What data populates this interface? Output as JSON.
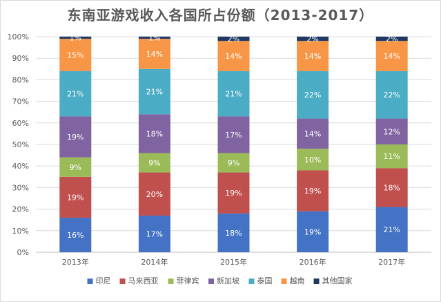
{
  "chart_data": {
    "type": "bar",
    "stacked": true,
    "title": "东南亚游戏收入各国所占份额（2013-2017）",
    "categories": [
      "2013年",
      "2014年",
      "2015年",
      "2016年",
      "2017年"
    ],
    "y_ticks": [
      "0%",
      "10%",
      "20%",
      "30%",
      "40%",
      "50%",
      "60%",
      "70%",
      "80%",
      "90%",
      "100%"
    ],
    "ylim": [
      0,
      100
    ],
    "grid": true,
    "legend_position": "bottom",
    "series": [
      {
        "name": "印尼",
        "color": "#4472C4",
        "label_color": "#ffffff",
        "values": [
          16,
          17,
          18,
          19,
          21
        ],
        "labels": [
          "16%",
          "17%",
          "18%",
          "19%",
          "21%"
        ]
      },
      {
        "name": "马来西亚",
        "color": "#C0504D",
        "label_color": "#ffffff",
        "values": [
          19,
          20,
          19,
          19,
          18
        ],
        "labels": [
          "19%",
          "20%",
          "19%",
          "19%",
          "18%"
        ]
      },
      {
        "name": "菲律宾",
        "color": "#9BBB59",
        "label_color": "#ffffff",
        "values": [
          9,
          9,
          9,
          10,
          11
        ],
        "labels": [
          "9%",
          "9%",
          "9%",
          "10%",
          "11%"
        ]
      },
      {
        "name": "新加坡",
        "color": "#8064A2",
        "label_color": "#ffffff",
        "values": [
          19,
          18,
          17,
          14,
          12
        ],
        "labels": [
          "19%",
          "18%",
          "17%",
          "14%",
          "12%"
        ]
      },
      {
        "name": "泰国",
        "color": "#4BACC6",
        "label_color": "#ffffff",
        "values": [
          21,
          21,
          21,
          22,
          22
        ],
        "labels": [
          "21%",
          "21%",
          "21%",
          "22%",
          "22%"
        ]
      },
      {
        "name": "越南",
        "color": "#F79646",
        "label_color": "#ffffff",
        "values": [
          15,
          14,
          14,
          14,
          14
        ],
        "labels": [
          "15%",
          "14%",
          "14%",
          "14%",
          "14%"
        ]
      },
      {
        "name": "其他国家",
        "color": "#1F3864",
        "label_color": "#ffffff",
        "values": [
          1,
          1,
          2,
          2,
          2
        ],
        "labels": [
          "1%",
          "1%",
          "2%",
          "2%",
          "2%"
        ]
      }
    ]
  }
}
